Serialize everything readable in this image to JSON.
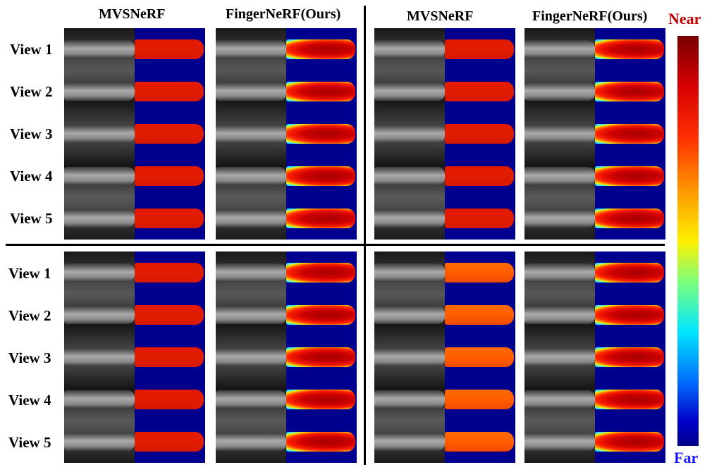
{
  "headers": {
    "top_left_a": "MVSNeRF",
    "top_left_b": "FingerNeRF(Ours)",
    "top_right_a": "MVSNeRF",
    "top_right_b": "FingerNeRF(Ours)"
  },
  "views": [
    "View 1",
    "View 2",
    "View 3",
    "View 4",
    "View 5"
  ],
  "colorbar": {
    "near_label": "Near",
    "far_label": "Far",
    "near_color": "#c00000",
    "far_color": "#1a1aff"
  },
  "colors": {
    "depth_background": "#00008f",
    "mvsnerf_red": "#e41a00",
    "mvsnerf_orange": "#ff6a00"
  }
}
